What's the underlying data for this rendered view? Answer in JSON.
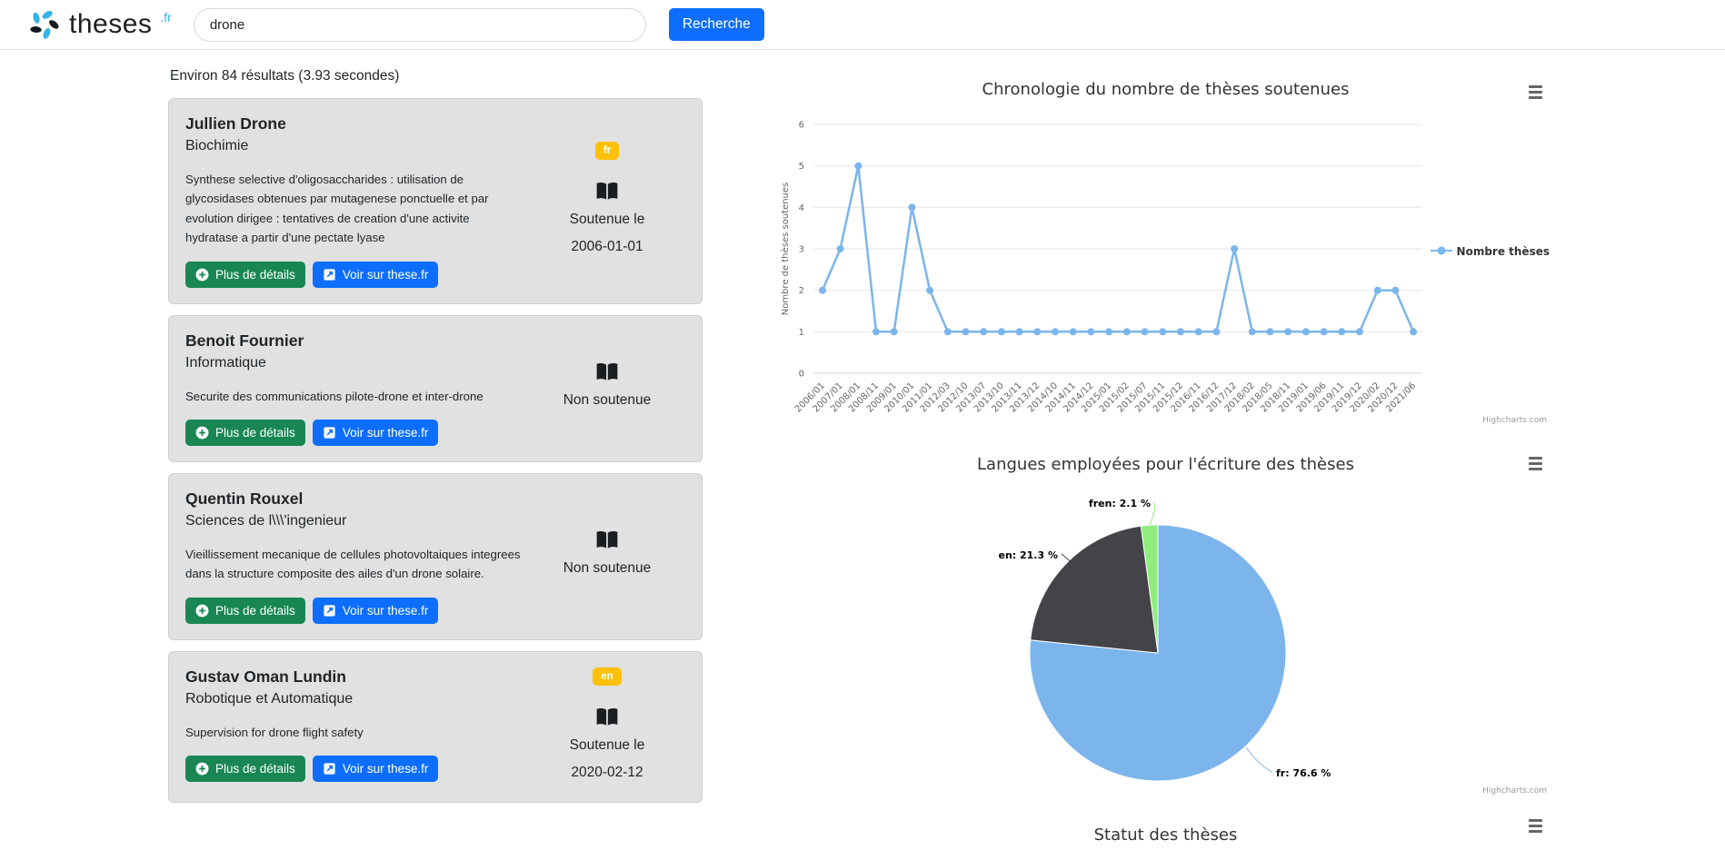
{
  "header": {
    "logo_text": "theses",
    "logo_tld": ".fr",
    "search_value": "drone",
    "search_button": "Recherche"
  },
  "results": {
    "summary": "Environ 84 résultats (3.93 secondes)",
    "details_button": "Plus de détails",
    "view_button": "Voir sur these.fr",
    "items": [
      {
        "author": "Jullien Drone",
        "discipline": "Biochimie",
        "abstract": "Synthese selective d'oligosaccharides : utilisation de glycosidases obtenues par mutagenese ponctuelle et par evolution dirigee : tentatives de creation d'une activite hydratase a partir d'une pectate lyase",
        "language": "fr",
        "status": "Soutenue le",
        "date": "2006-01-01"
      },
      {
        "author": "Benoit Fournier",
        "discipline": "Informatique",
        "abstract": "Securite des communications pilote-drone et inter-drone",
        "language": "",
        "status": "Non soutenue",
        "date": ""
      },
      {
        "author": "Quentin Rouxel",
        "discipline": "Sciences de l\\\\\\'ingenieur",
        "abstract": "Vieillissement mecanique de cellules photovoltaiques integrees dans la structure composite des ailes d'un drone solaire.",
        "language": "",
        "status": "Non soutenue",
        "date": ""
      },
      {
        "author": "Gustav Oman Lundin",
        "discipline": "Robotique et Automatique",
        "abstract": "Supervision for drone flight safety",
        "language": "en",
        "status": "Soutenue le",
        "date": "2020-02-12"
      }
    ]
  },
  "chart_data": [
    {
      "type": "line",
      "title": "Chronologie du nombre de thèses soutenues",
      "ylabel": "Nombre de thèses soutenues",
      "ylim": [
        0,
        6
      ],
      "yticks": [
        0,
        1,
        2,
        3,
        4,
        5,
        6
      ],
      "legend": "Nombre thèses",
      "legend_position": "right",
      "color": "#7cb5ec",
      "grid": true,
      "credits": "Highcharts.com",
      "categories": [
        "2006/01",
        "2007/01",
        "2008/01",
        "2008/11",
        "2009/01",
        "2010/01",
        "2011/01",
        "2012/03",
        "2012/10",
        "2013/07",
        "2013/10",
        "2013/11",
        "2013/12",
        "2014/10",
        "2014/11",
        "2014/12",
        "2015/01",
        "2015/02",
        "2015/07",
        "2015/11",
        "2015/12",
        "2016/11",
        "2016/12",
        "2017/12",
        "2018/02",
        "2018/05",
        "2018/11",
        "2019/01",
        "2019/06",
        "2019/11",
        "2019/12",
        "2020/02",
        "2020/12",
        "2021/06"
      ],
      "values": [
        2,
        3,
        5,
        1,
        1,
        4,
        2,
        1,
        1,
        1,
        1,
        1,
        1,
        1,
        1,
        1,
        1,
        1,
        1,
        1,
        1,
        1,
        1,
        3,
        1,
        1,
        1,
        1,
        1,
        1,
        1,
        2,
        2,
        1
      ]
    },
    {
      "type": "pie",
      "title": "Langues employées pour l'écriture des thèses",
      "credits": "Highcharts.com",
      "slices": [
        {
          "label": "fr",
          "value": 76.6,
          "color": "#7cb5ec",
          "data_label": "fr: 76.6 %"
        },
        {
          "label": "en",
          "value": 21.3,
          "color": "#434348",
          "data_label": "en: 21.3 %"
        },
        {
          "label": "fren",
          "value": 2.1,
          "color": "#90ed7d",
          "data_label": "fren: 2.1 %"
        }
      ]
    },
    {
      "type": "unknown",
      "title": "Statut des thèses"
    }
  ]
}
